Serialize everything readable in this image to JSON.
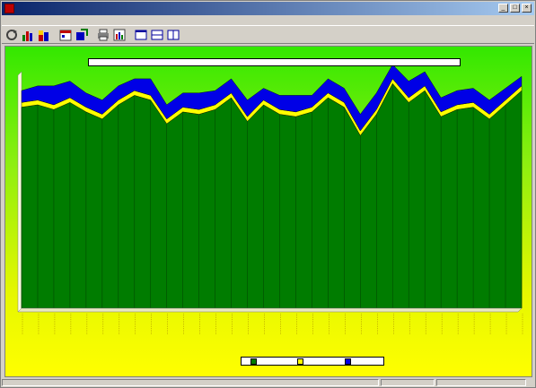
{
  "window": {
    "title": "",
    "controls": {
      "minimize": "_",
      "maximize": "□",
      "close": "×"
    }
  },
  "menu": {
    "items": [
      "",
      "",
      "",
      "",
      ""
    ]
  },
  "toolbar": {
    "buttons": [
      "refresh-icon",
      "bar-chart-icon",
      "stacked-chart-icon",
      "calendar-icon",
      "export-icon",
      "print-icon",
      "chart-settings-icon",
      "layout-full-icon",
      "layout-split-horizontal-icon",
      "layout-split-vertical-icon"
    ]
  },
  "status": {
    "left": "",
    "middle": "",
    "right": ""
  },
  "colors": {
    "background_top": "#33e800",
    "background_bottom": "#ffff00",
    "series_green": "#007c00",
    "series_yellow": "#ffff00",
    "series_blue": "#0000e6"
  },
  "chart_data": {
    "type": "area",
    "stacked": true,
    "title": "",
    "xlabel": "",
    "ylabel": "",
    "x": [
      "",
      "",
      "",
      "",
      "",
      "",
      "",
      "",
      "",
      "",
      "",
      "",
      "",
      "",
      "",
      "",
      "",
      "",
      "",
      "",
      "",
      "",
      "",
      "",
      "",
      "",
      "",
      "",
      "",
      "",
      "",
      ""
    ],
    "ylim": [
      0,
      100
    ],
    "grid": "vertical",
    "legend": "bottom-center",
    "series": [
      {
        "name": "",
        "color": "#007c00",
        "values": [
          85,
          86,
          84,
          87,
          83,
          80,
          86,
          90,
          88,
          78,
          83,
          82,
          84,
          89,
          79,
          86,
          82,
          81,
          83,
          89,
          85,
          73,
          82,
          95,
          87,
          92,
          81,
          84,
          85,
          80,
          86,
          92
        ]
      },
      {
        "name": "",
        "color": "#ffff00",
        "values": [
          2,
          2,
          2,
          2,
          2,
          2,
          2,
          2,
          2,
          2,
          2,
          2,
          2,
          2,
          2,
          2,
          2,
          2,
          2,
          2,
          2,
          2,
          2,
          2,
          2,
          2,
          2,
          2,
          2,
          2,
          2,
          2
        ]
      },
      {
        "name": "",
        "color": "#0000e6",
        "values": [
          5,
          6,
          8,
          7,
          6,
          6,
          6,
          5,
          7,
          6,
          6,
          7,
          6,
          6,
          7,
          5,
          6,
          7,
          5,
          6,
          6,
          7,
          7,
          6,
          7,
          6,
          6,
          6,
          6,
          6,
          5,
          4
        ]
      }
    ]
  }
}
